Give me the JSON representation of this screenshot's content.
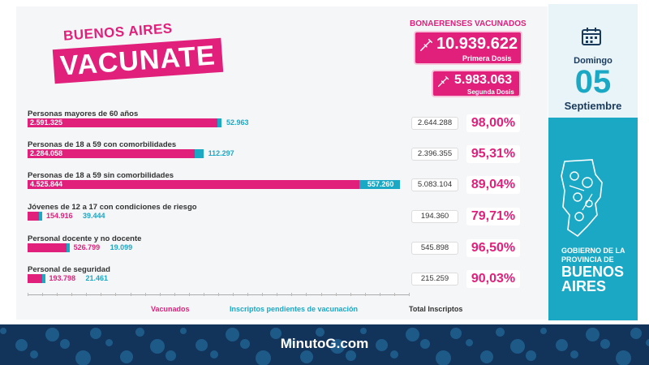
{
  "logo": {
    "top": "BUENOS AIRES",
    "bottom": "VACUNATE"
  },
  "vaccinated": {
    "title": "BONAERENSES VACUNADOS",
    "first_dose": {
      "value": "10.939.622",
      "label": "Primera Dosis"
    },
    "second_dose": {
      "value": "5.983.063",
      "label": "Segunda Dosis"
    }
  },
  "date": {
    "day_name": "Domingo",
    "day_number": "05",
    "month": "Septiembre"
  },
  "government": {
    "line1": "GOBIERNO DE LA",
    "line2": "PROVINCIA DE",
    "line3": "BUENOS",
    "line4": "AIRES"
  },
  "rows": [
    {
      "label": "Personas mayores de 60 años",
      "vacunados": "2.591.325",
      "pendientes": "52.963",
      "total": "2.644.288",
      "pct": "98,00%",
      "vac_value": 2591325,
      "pend_value": 52963
    },
    {
      "label": "Personas de 18 a 59 con comorbilidades",
      "vacunados": "2.284.058",
      "pendientes": "112.297",
      "total": "2.396.355",
      "pct": "95,31%",
      "vac_value": 2284058,
      "pend_value": 112297
    },
    {
      "label": "Personas de 18 a 59 sin comorbilidades",
      "vacunados": "4.525.844",
      "pendientes": "557.260",
      "total": "5.083.104",
      "pct": "89,04%",
      "vac_value": 4525844,
      "pend_value": 557260
    },
    {
      "label": "Jóvenes de 12 a 17 con condiciones de riesgo",
      "vacunados": "154.916",
      "pendientes": "39.444",
      "total": "194.360",
      "pct": "79,71%",
      "vac_value": 154916,
      "pend_value": 39444
    },
    {
      "label": "Personal docente y no docente",
      "vacunados": "526.799",
      "pendientes": "19.099",
      "total": "545.898",
      "pct": "96,50%",
      "vac_value": 526799,
      "pend_value": 19099
    },
    {
      "label": "Personal de seguridad",
      "vacunados": "193.798",
      "pendientes": "21.461",
      "total": "215.259",
      "pct": "90,03%",
      "vac_value": 193798,
      "pend_value": 21461
    }
  ],
  "axis": {
    "max": 5200000
  },
  "legend": {
    "vacunados": "Vacunados",
    "pendientes": "Inscriptos pendientes de vacunación",
    "total": "Total Inscriptos"
  },
  "colors": {
    "pink": "#e0207a",
    "cyan": "#1ba8c4",
    "navy": "#12345a"
  },
  "footer": {
    "text": "MinutoG.com"
  }
}
